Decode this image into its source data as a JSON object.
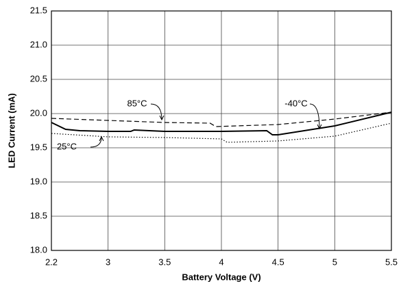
{
  "chart_data": {
    "type": "line",
    "xlabel": "Battery Voltage (V)",
    "ylabel": "LED Current (mA)",
    "xlim": [
      2.2,
      5.5
    ],
    "xticks": [
      2.2,
      3,
      3.5,
      4,
      4.5,
      5,
      5.5
    ],
    "ylim": [
      18,
      21.5
    ],
    "yticks": [
      {
        "value": 18,
        "label": "18.0"
      },
      18.5,
      {
        "value": 19,
        "label": "19.0"
      },
      19.5,
      {
        "value": 20,
        "label": "20.0"
      },
      20.5,
      {
        "value": 21,
        "label": "21.0"
      },
      21.5
    ],
    "grid": true,
    "series": [
      {
        "name": "-40°C",
        "color": "#000000",
        "style": "solid",
        "x": [
          2.2,
          2.4,
          2.6,
          3.0,
          3.2,
          3.23,
          3.5,
          4.0,
          4.4,
          4.45,
          4.5,
          5.0,
          5.5
        ],
        "values": [
          19.87,
          19.77,
          19.75,
          19.74,
          19.74,
          19.76,
          19.74,
          19.74,
          19.75,
          19.69,
          19.69,
          19.82,
          20.02
        ]
      },
      {
        "name": "85°C",
        "color": "#000000",
        "style": "dashed",
        "x": [
          2.2,
          3.0,
          3.5,
          3.9,
          3.95,
          4.5,
          5.0,
          5.5
        ],
        "values": [
          19.93,
          19.9,
          19.87,
          19.86,
          19.81,
          19.84,
          19.92,
          20.02
        ]
      },
      {
        "name": "25°C",
        "color": "#000000",
        "style": "dotted",
        "x": [
          2.2,
          3.0,
          3.5,
          4.0,
          4.05,
          4.5,
          5.0,
          5.5
        ],
        "values": [
          19.71,
          19.66,
          19.65,
          19.63,
          19.58,
          19.6,
          19.67,
          19.86
        ]
      }
    ],
    "annotations": [
      {
        "series": 1,
        "tx": 200,
        "ty": 152,
        "ax": [
          220,
          152,
          236,
          175
        ]
      },
      {
        "series": 0,
        "tx": 432,
        "ty": 152,
        "ax": [
          452,
          152,
          466,
          188
        ]
      },
      {
        "series": 2,
        "tx": 112,
        "ty": 215,
        "ax": [
          132,
          215,
          148,
          200
        ]
      }
    ]
  }
}
